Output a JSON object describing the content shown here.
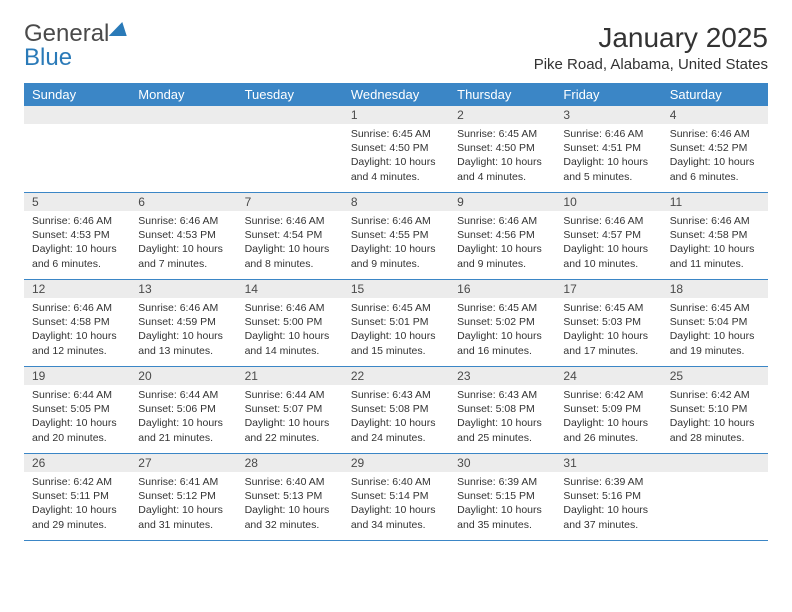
{
  "brand": {
    "part1": "General",
    "part2": "Blue"
  },
  "title": "January 2025",
  "location": "Pike Road, Alabama, United States",
  "colors": {
    "header_bg": "#3b86c6",
    "header_text": "#ffffff",
    "daynum_bg": "#ececec",
    "border": "#3b86c6",
    "brand_blue": "#2a7ab8",
    "text": "#333333"
  },
  "dayNames": [
    "Sunday",
    "Monday",
    "Tuesday",
    "Wednesday",
    "Thursday",
    "Friday",
    "Saturday"
  ],
  "weeks": [
    [
      {
        "blank": true
      },
      {
        "blank": true
      },
      {
        "blank": true
      },
      {
        "n": "1",
        "sr": "6:45 AM",
        "ss": "4:50 PM",
        "dl": "10 hours and 4 minutes."
      },
      {
        "n": "2",
        "sr": "6:45 AM",
        "ss": "4:50 PM",
        "dl": "10 hours and 4 minutes."
      },
      {
        "n": "3",
        "sr": "6:46 AM",
        "ss": "4:51 PM",
        "dl": "10 hours and 5 minutes."
      },
      {
        "n": "4",
        "sr": "6:46 AM",
        "ss": "4:52 PM",
        "dl": "10 hours and 6 minutes."
      }
    ],
    [
      {
        "n": "5",
        "sr": "6:46 AM",
        "ss": "4:53 PM",
        "dl": "10 hours and 6 minutes."
      },
      {
        "n": "6",
        "sr": "6:46 AM",
        "ss": "4:53 PM",
        "dl": "10 hours and 7 minutes."
      },
      {
        "n": "7",
        "sr": "6:46 AM",
        "ss": "4:54 PM",
        "dl": "10 hours and 8 minutes."
      },
      {
        "n": "8",
        "sr": "6:46 AM",
        "ss": "4:55 PM",
        "dl": "10 hours and 9 minutes."
      },
      {
        "n": "9",
        "sr": "6:46 AM",
        "ss": "4:56 PM",
        "dl": "10 hours and 9 minutes."
      },
      {
        "n": "10",
        "sr": "6:46 AM",
        "ss": "4:57 PM",
        "dl": "10 hours and 10 minutes."
      },
      {
        "n": "11",
        "sr": "6:46 AM",
        "ss": "4:58 PM",
        "dl": "10 hours and 11 minutes."
      }
    ],
    [
      {
        "n": "12",
        "sr": "6:46 AM",
        "ss": "4:58 PM",
        "dl": "10 hours and 12 minutes."
      },
      {
        "n": "13",
        "sr": "6:46 AM",
        "ss": "4:59 PM",
        "dl": "10 hours and 13 minutes."
      },
      {
        "n": "14",
        "sr": "6:46 AM",
        "ss": "5:00 PM",
        "dl": "10 hours and 14 minutes."
      },
      {
        "n": "15",
        "sr": "6:45 AM",
        "ss": "5:01 PM",
        "dl": "10 hours and 15 minutes."
      },
      {
        "n": "16",
        "sr": "6:45 AM",
        "ss": "5:02 PM",
        "dl": "10 hours and 16 minutes."
      },
      {
        "n": "17",
        "sr": "6:45 AM",
        "ss": "5:03 PM",
        "dl": "10 hours and 17 minutes."
      },
      {
        "n": "18",
        "sr": "6:45 AM",
        "ss": "5:04 PM",
        "dl": "10 hours and 19 minutes."
      }
    ],
    [
      {
        "n": "19",
        "sr": "6:44 AM",
        "ss": "5:05 PM",
        "dl": "10 hours and 20 minutes."
      },
      {
        "n": "20",
        "sr": "6:44 AM",
        "ss": "5:06 PM",
        "dl": "10 hours and 21 minutes."
      },
      {
        "n": "21",
        "sr": "6:44 AM",
        "ss": "5:07 PM",
        "dl": "10 hours and 22 minutes."
      },
      {
        "n": "22",
        "sr": "6:43 AM",
        "ss": "5:08 PM",
        "dl": "10 hours and 24 minutes."
      },
      {
        "n": "23",
        "sr": "6:43 AM",
        "ss": "5:08 PM",
        "dl": "10 hours and 25 minutes."
      },
      {
        "n": "24",
        "sr": "6:42 AM",
        "ss": "5:09 PM",
        "dl": "10 hours and 26 minutes."
      },
      {
        "n": "25",
        "sr": "6:42 AM",
        "ss": "5:10 PM",
        "dl": "10 hours and 28 minutes."
      }
    ],
    [
      {
        "n": "26",
        "sr": "6:42 AM",
        "ss": "5:11 PM",
        "dl": "10 hours and 29 minutes."
      },
      {
        "n": "27",
        "sr": "6:41 AM",
        "ss": "5:12 PM",
        "dl": "10 hours and 31 minutes."
      },
      {
        "n": "28",
        "sr": "6:40 AM",
        "ss": "5:13 PM",
        "dl": "10 hours and 32 minutes."
      },
      {
        "n": "29",
        "sr": "6:40 AM",
        "ss": "5:14 PM",
        "dl": "10 hours and 34 minutes."
      },
      {
        "n": "30",
        "sr": "6:39 AM",
        "ss": "5:15 PM",
        "dl": "10 hours and 35 minutes."
      },
      {
        "n": "31",
        "sr": "6:39 AM",
        "ss": "5:16 PM",
        "dl": "10 hours and 37 minutes."
      },
      {
        "blank": true
      }
    ]
  ],
  "labels": {
    "sunrise": "Sunrise:",
    "sunset": "Sunset:",
    "daylight": "Daylight:"
  }
}
